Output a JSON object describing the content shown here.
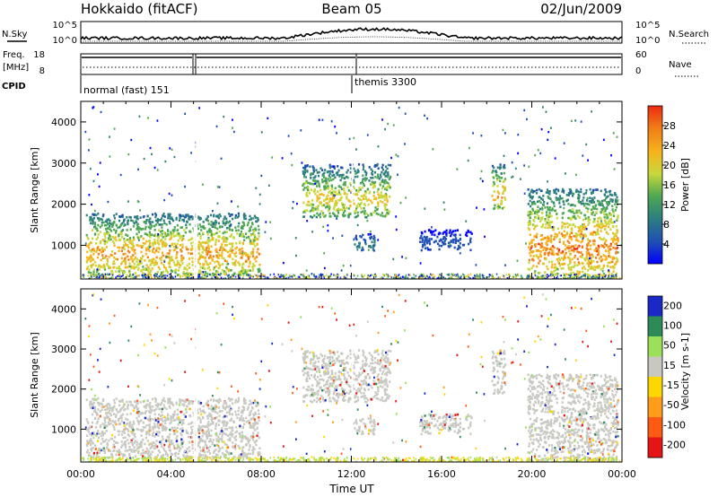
{
  "header": {
    "station": "Hokkaido (fitACF)",
    "beam": "Beam 05",
    "date": "02/Jun/2009"
  },
  "noise_panel": {
    "left_label": "N.Sky",
    "right_label": "N.Search",
    "left_ticks": [
      "10^5",
      "10^0"
    ],
    "right_ticks": [
      "10^5",
      "10^0"
    ]
  },
  "freq_panel": {
    "left_label_1": "Freq.",
    "left_label_2": "[MHz]",
    "left_ticks": [
      "18",
      "8"
    ],
    "right_label": "Nave",
    "right_ticks": [
      "60",
      "0"
    ],
    "cpid_label": "CPID",
    "cpid_segments": [
      "normal (fast) 151",
      "themis 3300"
    ]
  },
  "colors": {
    "power_scale": [
      "#0000ff",
      "#1f4fb5",
      "#2e7f7f",
      "#4fa852",
      "#c8d73a",
      "#f6b31b",
      "#f07d18",
      "#ee2a12"
    ],
    "velocity_scale": [
      "#1a28c8",
      "#2e8b57",
      "#9be05a",
      "#c8c8c0",
      "#ffd700",
      "#ff9c1a",
      "#ff5a14",
      "#e61414"
    ]
  },
  "chart_data": [
    {
      "type": "heatmap",
      "title": "Power",
      "xlabel": "",
      "ylabel": "Slant Range [km]",
      "colorbar_label": "Power [dB]",
      "colorbar_ticks": [
        "28",
        "24",
        "20",
        "16",
        "12",
        "8",
        "4"
      ],
      "xlim": [
        0,
        24
      ],
      "ylim": [
        180,
        4500
      ],
      "yticks": [
        "1000",
        "2000",
        "3000",
        "4000"
      ],
      "regions": [
        {
          "t0": 0.2,
          "t1": 7.9,
          "r0": 300,
          "r1": 1800,
          "peak": 28
        },
        {
          "t0": 9.8,
          "t1": 13.7,
          "r0": 1700,
          "r1": 3000,
          "peak": 24
        },
        {
          "t0": 12.0,
          "t1": 13.0,
          "r0": 900,
          "r1": 1300,
          "peak": 12
        },
        {
          "t0": 15.0,
          "t1": 17.3,
          "r0": 900,
          "r1": 1400,
          "peak": 8
        },
        {
          "t0": 18.2,
          "t1": 18.8,
          "r0": 1900,
          "r1": 3000,
          "peak": 28
        },
        {
          "t0": 19.8,
          "t1": 23.8,
          "r0": 200,
          "r1": 2400,
          "peak": 30
        }
      ]
    },
    {
      "type": "heatmap",
      "title": "Velocity",
      "xlabel": "Time UT",
      "ylabel": "Slant Range [km]",
      "colorbar_label": "Velocity [m s-1]",
      "colorbar_ticks": [
        "200",
        "100",
        "50",
        "15",
        "-15",
        "-50",
        "-100",
        "-200"
      ],
      "xlim": [
        0,
        24
      ],
      "ylim": [
        180,
        4500
      ],
      "xticks": [
        "00:00",
        "04:00",
        "08:00",
        "12:00",
        "16:00",
        "20:00",
        "00:00"
      ],
      "yticks": [
        "1000",
        "2000",
        "3000",
        "4000"
      ]
    }
  ]
}
